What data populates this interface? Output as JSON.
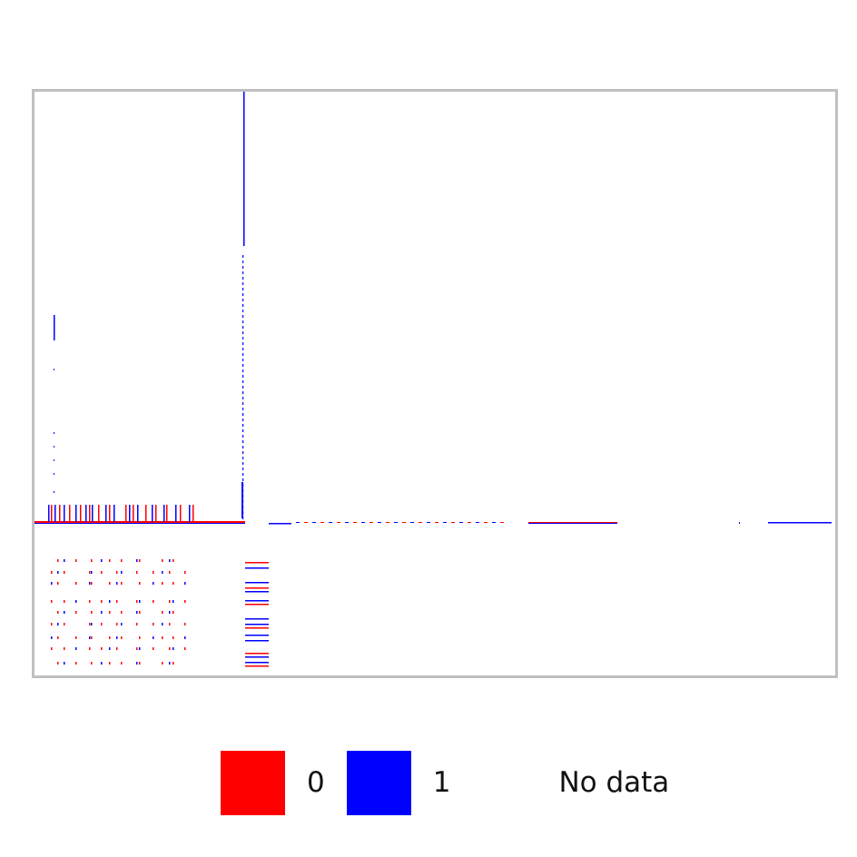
{
  "chart_data": {
    "type": "heatmap",
    "title": "",
    "xlabel": "",
    "ylabel": "",
    "value_colors": {
      "0": "#ff0000",
      "1": "#0000ff",
      "No data": "#ffffff"
    },
    "legend": [
      {
        "label": "0",
        "color": "#ff0000"
      },
      {
        "label": "1",
        "color": "#0000ff"
      },
      {
        "label": "No data",
        "color": "#ffffff"
      }
    ],
    "legend_position": "bottom-center",
    "grid": false
  }
}
